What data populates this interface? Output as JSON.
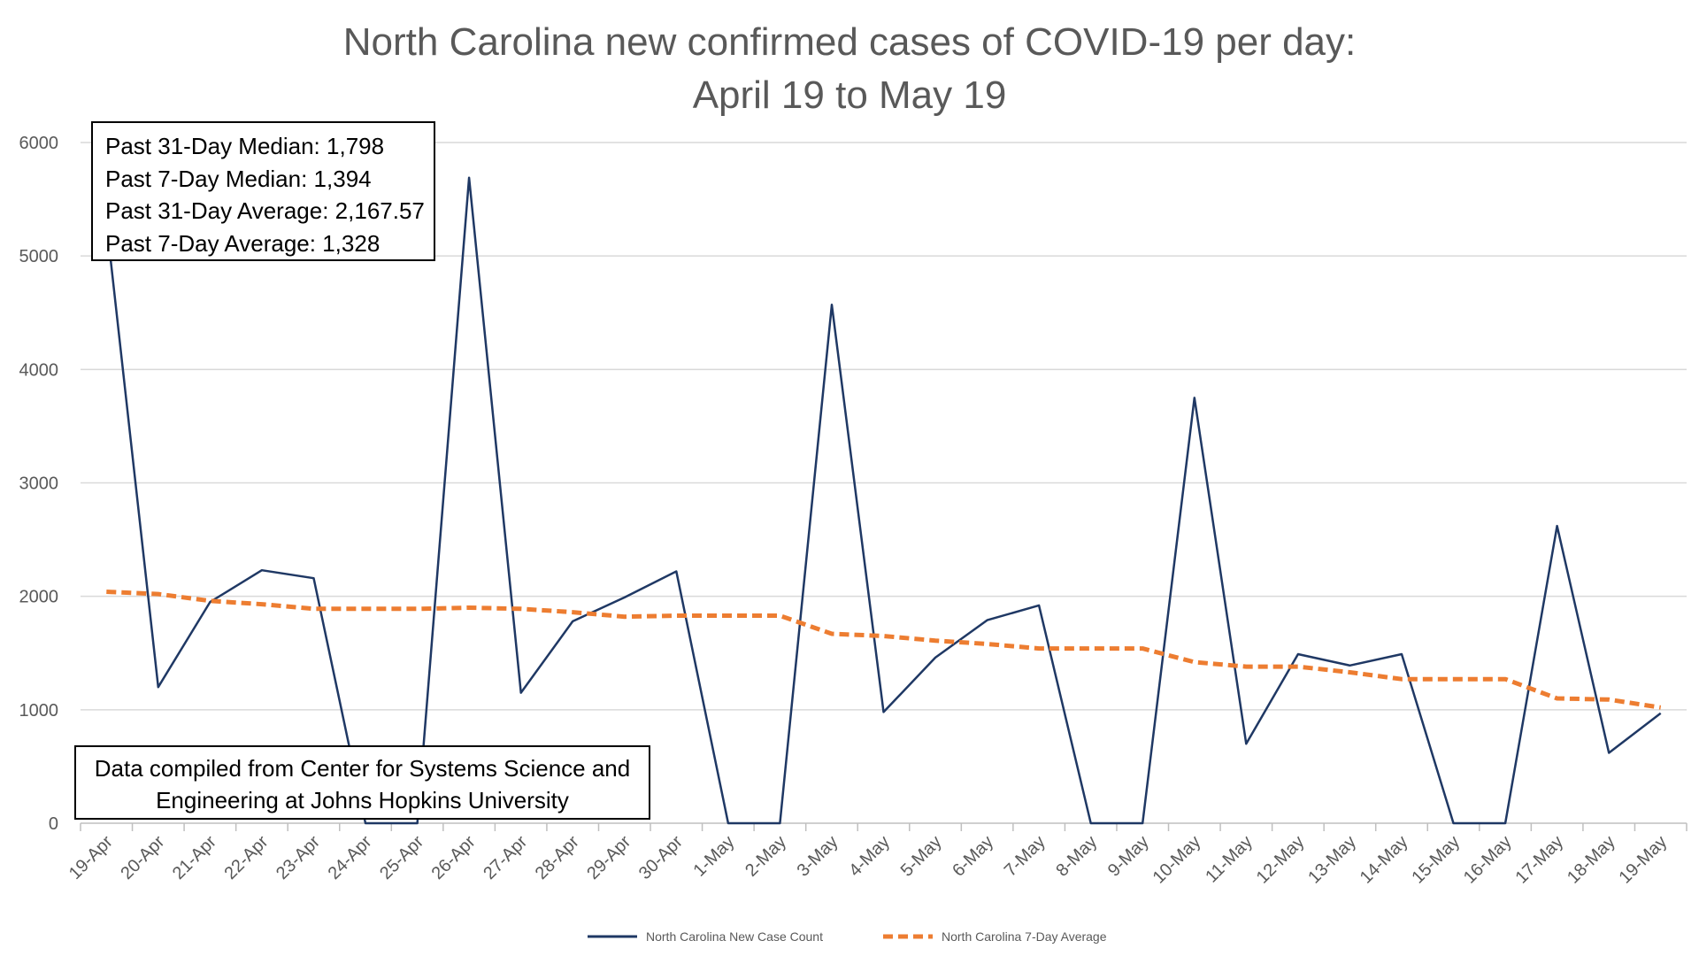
{
  "chart_data": {
    "type": "line",
    "title": "North Carolina new confirmed cases of COVID-19 per day:",
    "subtitle": "April 19 to May 19",
    "xlabel": "",
    "ylabel": "",
    "ylim": [
      0,
      6000
    ],
    "y_ticks": [
      0,
      1000,
      2000,
      3000,
      4000,
      5000,
      6000
    ],
    "grid": true,
    "legend_position": "bottom",
    "categories": [
      "19-Apr",
      "20-Apr",
      "21-Apr",
      "22-Apr",
      "23-Apr",
      "24-Apr",
      "25-Apr",
      "26-Apr",
      "27-Apr",
      "28-Apr",
      "29-Apr",
      "30-Apr",
      "1-May",
      "2-May",
      "3-May",
      "4-May",
      "5-May",
      "6-May",
      "7-May",
      "8-May",
      "9-May",
      "10-May",
      "11-May",
      "12-May",
      "13-May",
      "14-May",
      "15-May",
      "16-May",
      "17-May",
      "18-May",
      "19-May"
    ],
    "series": [
      {
        "name": "North Carolina New Case Count",
        "color": "#1f3864",
        "style": "solid",
        "values": [
          5300,
          1200,
          1950,
          2230,
          2160,
          0,
          0,
          5690,
          1150,
          1780,
          1990,
          2220,
          0,
          0,
          4570,
          980,
          1460,
          1790,
          1920,
          0,
          0,
          3750,
          700,
          1490,
          1390,
          1490,
          0,
          0,
          2620,
          620,
          970
        ]
      },
      {
        "name": "North Carolina 7-Day Average",
        "color": "#ed7d31",
        "style": "dashed",
        "values": [
          2040,
          2020,
          1960,
          1930,
          1890,
          1890,
          1890,
          1900,
          1890,
          1860,
          1820,
          1830,
          1830,
          1830,
          1670,
          1650,
          1610,
          1580,
          1540,
          1540,
          1540,
          1420,
          1380,
          1380,
          1330,
          1270,
          1270,
          1270,
          1100,
          1090,
          1020
        ]
      }
    ]
  },
  "annotations": {
    "stats": [
      "Past 31-Day Median: 1,798",
      "Past 7-Day Median: 1,394",
      "Past 31-Day Average: 2,167.57",
      "Past 7-Day Average: 1,328"
    ],
    "source": [
      "Data compiled from Center for Systems Science and",
      "Engineering at Johns Hopkins University"
    ]
  }
}
